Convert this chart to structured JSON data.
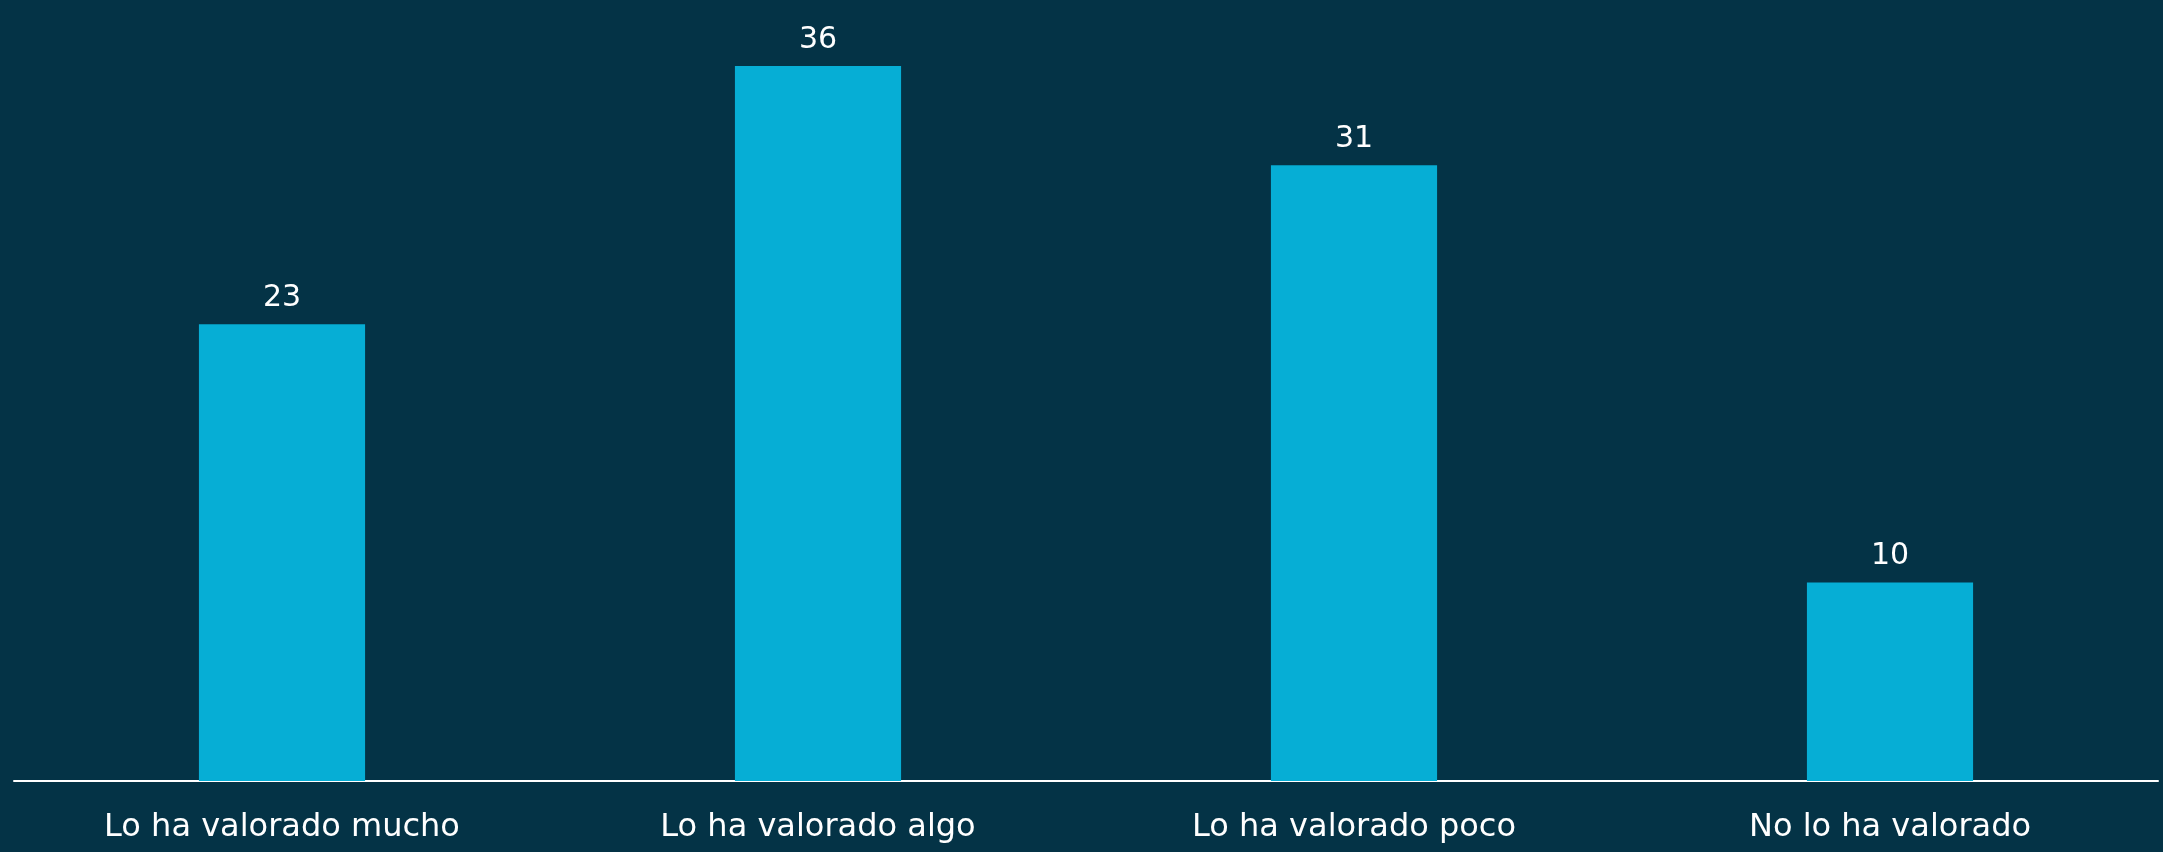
{
  "chart_data": {
    "type": "bar",
    "categories": [
      "Lo ha valorado mucho",
      "Lo ha valorado algo",
      "Lo ha valorado poco",
      "No lo ha valorado"
    ],
    "values": [
      23,
      36,
      31,
      10
    ],
    "color": "#06aed5",
    "data_labels": true
  }
}
